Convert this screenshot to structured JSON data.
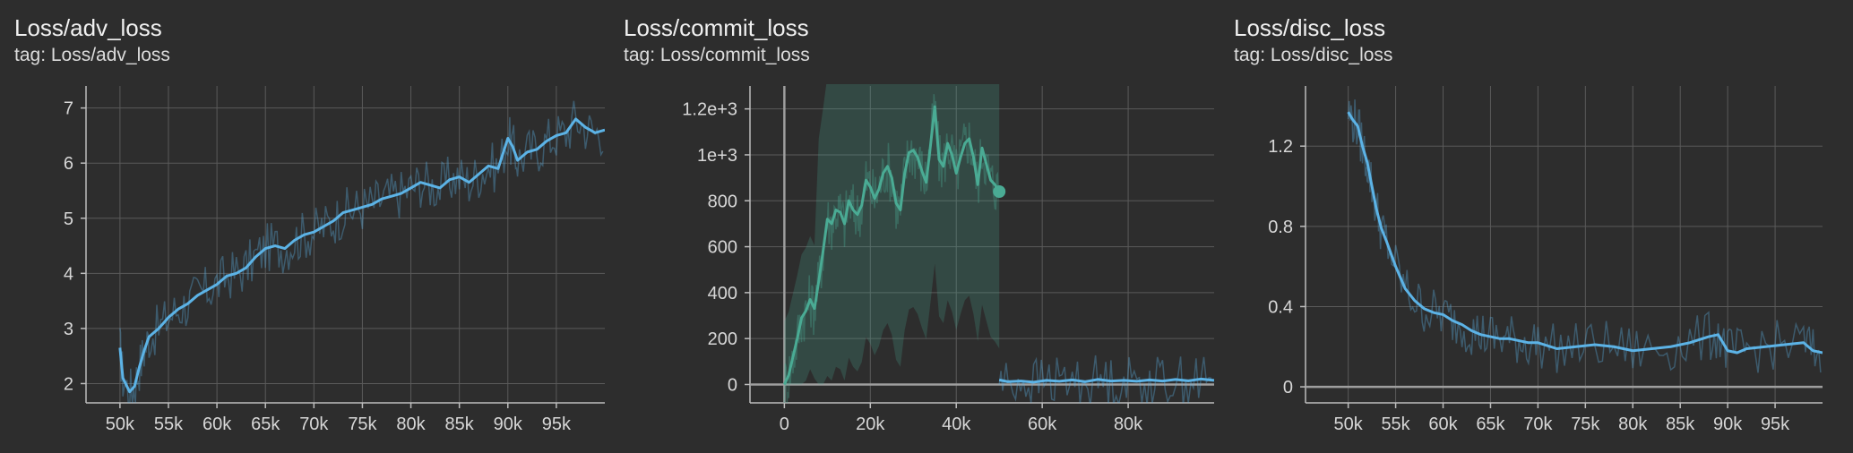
{
  "chart_data": [
    {
      "type": "line",
      "title": "Loss/adv_loss",
      "tag": "tag: Loss/adv_loss",
      "xlim": [
        46500,
        100000
      ],
      "ylim": [
        1.65,
        7.4
      ],
      "xticks": [
        50000,
        55000,
        60000,
        65000,
        70000,
        75000,
        80000,
        85000,
        90000,
        95000
      ],
      "xtick_labels": [
        "50k",
        "55k",
        "60k",
        "65k",
        "70k",
        "75k",
        "80k",
        "85k",
        "90k",
        "95k"
      ],
      "yticks": [
        2,
        3,
        4,
        5,
        6,
        7
      ],
      "ytick_labels": [
        "2",
        "3",
        "4",
        "5",
        "6",
        "7"
      ],
      "grid": true,
      "color": "#5cb3e6",
      "series": [
        {
          "x": [
            50000,
            50300,
            51000,
            51500,
            52000,
            52500,
            53000,
            54000,
            55000,
            56000,
            57000,
            58000,
            59000,
            60000,
            61000,
            62000,
            63000,
            64000,
            65000,
            66000,
            67000,
            68000,
            69000,
            70000,
            71000,
            72000,
            73000,
            74000,
            75000,
            76000,
            77000,
            78000,
            79000,
            80000,
            81000,
            82000,
            83000,
            84000,
            85000,
            86000,
            87000,
            88000,
            89000,
            90000,
            90500,
            91000,
            92000,
            93000,
            94000,
            95000,
            96000,
            97000,
            98000,
            99000,
            100000
          ],
          "y": [
            2.65,
            2.1,
            1.85,
            1.95,
            2.3,
            2.6,
            2.85,
            3.0,
            3.2,
            3.35,
            3.45,
            3.6,
            3.7,
            3.8,
            3.95,
            4.0,
            4.1,
            4.3,
            4.45,
            4.5,
            4.45,
            4.6,
            4.7,
            4.75,
            4.85,
            4.95,
            5.1,
            5.15,
            5.2,
            5.25,
            5.35,
            5.4,
            5.45,
            5.55,
            5.65,
            5.6,
            5.55,
            5.7,
            5.75,
            5.65,
            5.8,
            5.95,
            5.9,
            6.45,
            6.3,
            6.05,
            6.2,
            6.25,
            6.4,
            6.5,
            6.55,
            6.8,
            6.65,
            6.55,
            6.6
          ]
        }
      ]
    },
    {
      "type": "line",
      "title": "Loss/commit_loss",
      "tag": "tag: Loss/commit_loss",
      "xlim": [
        -8000,
        100000
      ],
      "ylim": [
        -80,
        1300
      ],
      "xticks": [
        0,
        20000,
        40000,
        60000,
        80000
      ],
      "xtick_labels": [
        "0",
        "20k",
        "40k",
        "60k",
        "80k"
      ],
      "yticks": [
        0,
        200,
        400,
        600,
        800,
        1000,
        1200
      ],
      "ytick_labels": [
        "0",
        "200",
        "400",
        "600",
        "800",
        "1e+3",
        "1.2e+3"
      ],
      "grid": true,
      "series": [
        {
          "color": "#4aab94",
          "x": [
            0,
            1000,
            2000,
            3000,
            4000,
            5000,
            6000,
            7000,
            8000,
            9000,
            10000,
            11000,
            12000,
            13000,
            14000,
            15000,
            16000,
            17000,
            18000,
            19000,
            20000,
            21000,
            22000,
            23000,
            24000,
            25000,
            26000,
            27000,
            28000,
            29000,
            30000,
            31000,
            32000,
            33000,
            34000,
            35000,
            36000,
            37000,
            38000,
            39000,
            40000,
            41000,
            42000,
            43000,
            44000,
            45000,
            46000,
            47000,
            48000,
            49000,
            50000
          ],
          "y": [
            0,
            40,
            120,
            200,
            290,
            320,
            370,
            330,
            450,
            580,
            720,
            700,
            760,
            750,
            700,
            800,
            760,
            740,
            780,
            890,
            860,
            810,
            850,
            920,
            950,
            900,
            790,
            760,
            920,
            1010,
            1020,
            990,
            930,
            880,
            1040,
            1210,
            980,
            950,
            1050,
            1000,
            920,
            990,
            1050,
            1070,
            990,
            870,
            1030,
            960,
            890,
            870,
            840
          ]
        },
        {
          "color": "#5cb3e6",
          "x": [
            50000,
            52000,
            55000,
            58000,
            61000,
            64000,
            67000,
            70000,
            73000,
            76000,
            79000,
            82000,
            85000,
            88000,
            91000,
            94000,
            97000,
            100000
          ],
          "y": [
            20,
            12,
            15,
            10,
            18,
            14,
            20,
            12,
            22,
            15,
            18,
            14,
            20,
            15,
            22,
            16,
            24,
            18
          ]
        }
      ]
    },
    {
      "type": "line",
      "title": "Loss/disc_loss",
      "tag": "tag: Loss/disc_loss",
      "xlim": [
        45500,
        100000
      ],
      "ylim": [
        -0.08,
        1.5
      ],
      "xticks": [
        50000,
        55000,
        60000,
        65000,
        70000,
        75000,
        80000,
        85000,
        90000,
        95000
      ],
      "xtick_labels": [
        "50k",
        "55k",
        "60k",
        "65k",
        "70k",
        "75k",
        "80k",
        "85k",
        "90k",
        "95k"
      ],
      "yticks": [
        0,
        0.4,
        0.8,
        1.2
      ],
      "ytick_labels": [
        "0",
        "0.4",
        "0.8",
        "1.2"
      ],
      "grid": true,
      "color": "#5cb3e6",
      "series": [
        {
          "x": [
            50000,
            50500,
            51000,
            51500,
            52000,
            52500,
            53000,
            53500,
            54000,
            55000,
            56000,
            57000,
            58000,
            59000,
            60000,
            61000,
            62000,
            63000,
            64000,
            65000,
            66000,
            67000,
            68000,
            69000,
            70000,
            72000,
            74000,
            76000,
            78000,
            80000,
            82000,
            84000,
            86000,
            88000,
            89000,
            90000,
            91000,
            92000,
            94000,
            96000,
            98000,
            99000,
            100000
          ],
          "y": [
            1.37,
            1.33,
            1.3,
            1.2,
            1.12,
            1.0,
            0.88,
            0.79,
            0.73,
            0.6,
            0.49,
            0.43,
            0.39,
            0.37,
            0.36,
            0.33,
            0.31,
            0.28,
            0.26,
            0.25,
            0.24,
            0.24,
            0.23,
            0.22,
            0.22,
            0.19,
            0.2,
            0.21,
            0.2,
            0.18,
            0.19,
            0.2,
            0.22,
            0.25,
            0.26,
            0.18,
            0.17,
            0.19,
            0.2,
            0.21,
            0.22,
            0.18,
            0.17
          ]
        }
      ]
    }
  ]
}
